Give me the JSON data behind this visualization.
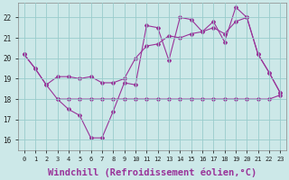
{
  "background_color": "#cce8e8",
  "line_color": "#993399",
  "grid_color": "#99cccc",
  "xlabel": "Windchill (Refroidissement éolien,°C)",
  "xlabel_fontsize": 7.5,
  "ylim": [
    15.5,
    22.7
  ],
  "xlim": [
    -0.5,
    23.5
  ],
  "yticks": [
    16,
    17,
    18,
    19,
    20,
    21,
    22
  ],
  "xticks": [
    0,
    1,
    2,
    3,
    4,
    5,
    6,
    7,
    8,
    9,
    10,
    11,
    12,
    13,
    14,
    15,
    16,
    17,
    18,
    19,
    20,
    21,
    22,
    23
  ],
  "line1_x": [
    0,
    1,
    2,
    3,
    4,
    5,
    6,
    7,
    8,
    9,
    10,
    11,
    12,
    13,
    14,
    15,
    16,
    17,
    18,
    19,
    20,
    21,
    22,
    23
  ],
  "line1_y": [
    20.2,
    19.5,
    18.7,
    18.0,
    17.5,
    17.2,
    16.1,
    16.1,
    17.4,
    18.8,
    18.7,
    21.6,
    21.5,
    19.9,
    22.0,
    21.9,
    21.3,
    21.8,
    20.8,
    22.5,
    22.0,
    20.2,
    19.3,
    18.3
  ],
  "line2_x": [
    0,
    1,
    2,
    3,
    4,
    5,
    6,
    7,
    8,
    9,
    10,
    11,
    12,
    13,
    14,
    15,
    16,
    17,
    18,
    19,
    20,
    21,
    22,
    23
  ],
  "line2_y": [
    20.2,
    19.5,
    18.7,
    19.1,
    19.1,
    19.0,
    19.1,
    18.8,
    18.8,
    19.0,
    20.0,
    20.6,
    20.7,
    21.1,
    21.0,
    21.2,
    21.3,
    21.5,
    21.2,
    21.8,
    22.0,
    20.2,
    19.3,
    18.3
  ],
  "line3_x": [
    3,
    4,
    5,
    6,
    7,
    8,
    9,
    10,
    11,
    12,
    13,
    14,
    15,
    16,
    17,
    18,
    19,
    20,
    21,
    22,
    23
  ],
  "line3_y": [
    18.0,
    18.0,
    18.0,
    18.0,
    18.0,
    18.0,
    18.0,
    18.0,
    18.0,
    18.0,
    18.0,
    18.0,
    18.0,
    18.0,
    18.0,
    18.0,
    18.0,
    18.0,
    18.0,
    18.0,
    18.2
  ]
}
